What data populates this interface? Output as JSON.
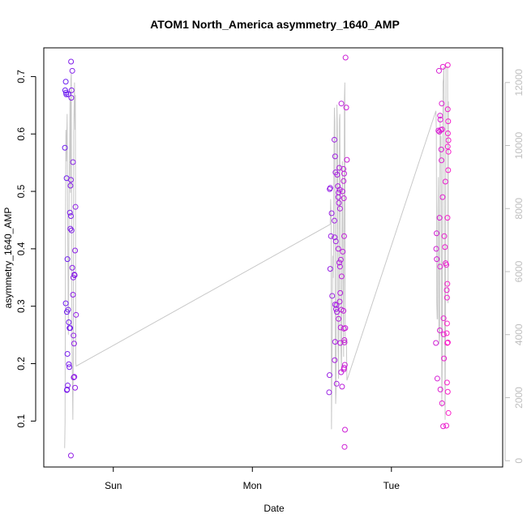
{
  "chart_data": {
    "type": "scatter",
    "title": "ATOM1 North_America asymmetry_1640_AMP",
    "xlabel": "Date",
    "ylabel": "asymmetry_1640_AMP",
    "x_unit": "days",
    "xlim": [
      0.0,
      3.3
    ],
    "ylim": [
      0.02,
      0.75
    ],
    "y2lim": [
      -200,
      13100
    ],
    "x_ticks": [
      {
        "label": "Sun",
        "value": 0.5
      },
      {
        "label": "Mon",
        "value": 1.5
      },
      {
        "label": "Tue",
        "value": 2.5
      }
    ],
    "y_ticks": [
      {
        "label": "0.1",
        "value": 0.1
      },
      {
        "label": "0.2",
        "value": 0.2
      },
      {
        "label": "0.3",
        "value": 0.3
      },
      {
        "label": "0.4",
        "value": 0.4
      },
      {
        "label": "0.5",
        "value": 0.5
      },
      {
        "label": "0.6",
        "value": 0.6
      },
      {
        "label": "0.7",
        "value": 0.7
      }
    ],
    "y2_ticks": [
      {
        "label": "0",
        "value": 0
      },
      {
        "label": "2000",
        "value": 2000
      },
      {
        "label": "4000",
        "value": 4000
      },
      {
        "label": "6000",
        "value": 6000
      },
      {
        "label": "8000",
        "value": 8000
      },
      {
        "label": "10000",
        "value": 10000
      },
      {
        "label": "12000",
        "value": 12000
      }
    ],
    "colors": {
      "start": "#6b1ff0",
      "end": "#ff1fc8",
      "line": "#c8c8c8"
    },
    "grid": false,
    "series": [
      {
        "kind": "points",
        "points": [
          [
            0.154,
            0.676
          ],
          [
            0.158,
            0.691
          ],
          [
            0.162,
            0.669
          ],
          [
            0.16,
            0.672
          ],
          [
            0.176,
            0.669
          ],
          [
            0.152,
            0.576
          ],
          [
            0.164,
            0.523
          ],
          [
            0.17,
            0.382
          ],
          [
            0.158,
            0.305
          ],
          [
            0.166,
            0.29
          ],
          [
            0.175,
            0.294
          ],
          [
            0.18,
            0.272
          ],
          [
            0.185,
            0.262
          ],
          [
            0.19,
            0.262
          ],
          [
            0.17,
            0.217
          ],
          [
            0.18,
            0.199
          ],
          [
            0.184,
            0.194
          ],
          [
            0.172,
            0.162
          ],
          [
            0.166,
            0.154
          ],
          [
            0.168,
            0.155
          ],
          [
            0.188,
            0.463
          ],
          [
            0.195,
            0.457
          ],
          [
            0.191,
            0.435
          ],
          [
            0.2,
            0.432
          ],
          [
            0.196,
            0.726
          ],
          [
            0.205,
            0.71
          ],
          [
            0.2,
            0.676
          ],
          [
            0.198,
            0.663
          ],
          [
            0.195,
            0.52
          ],
          [
            0.192,
            0.51
          ],
          [
            0.21,
            0.551
          ],
          [
            0.205,
            0.367
          ],
          [
            0.212,
            0.35
          ],
          [
            0.22,
            0.355
          ],
          [
            0.222,
            0.354
          ],
          [
            0.225,
            0.397
          ],
          [
            0.228,
            0.473
          ],
          [
            0.21,
            0.32
          ],
          [
            0.214,
            0.249
          ],
          [
            0.218,
            0.235
          ],
          [
            0.215,
            0.176
          ],
          [
            0.22,
            0.177
          ],
          [
            0.225,
            0.158
          ],
          [
            0.232,
            0.285
          ],
          [
            0.195,
            0.04
          ],
          [
            2.056,
            0.504
          ],
          [
            2.06,
            0.506
          ],
          [
            2.06,
            0.365
          ],
          [
            2.055,
            0.18
          ],
          [
            2.052,
            0.15
          ],
          [
            2.07,
            0.462
          ],
          [
            2.065,
            0.422
          ],
          [
            2.074,
            0.318
          ],
          [
            2.09,
            0.59
          ],
          [
            2.095,
            0.561
          ],
          [
            2.098,
            0.533
          ],
          [
            2.09,
            0.449
          ],
          [
            2.092,
            0.42
          ],
          [
            2.1,
            0.413
          ],
          [
            2.095,
            0.303
          ],
          [
            2.105,
            0.302
          ],
          [
            2.102,
            0.295
          ],
          [
            2.108,
            0.29
          ],
          [
            2.095,
            0.238
          ],
          [
            2.092,
            0.206
          ],
          [
            2.106,
            0.165
          ],
          [
            2.11,
            0.529
          ],
          [
            2.115,
            0.509
          ],
          [
            2.12,
            0.498
          ],
          [
            2.118,
            0.49
          ],
          [
            2.125,
            0.541
          ],
          [
            2.128,
            0.503
          ],
          [
            2.122,
            0.48
          ],
          [
            2.13,
            0.47
          ],
          [
            2.118,
            0.4
          ],
          [
            2.125,
            0.376
          ],
          [
            2.13,
            0.369
          ],
          [
            2.136,
            0.381
          ],
          [
            2.132,
            0.323
          ],
          [
            2.128,
            0.308
          ],
          [
            2.12,
            0.278
          ],
          [
            2.14,
            0.294
          ],
          [
            2.135,
            0.263
          ],
          [
            2.132,
            0.236
          ],
          [
            2.138,
            0.185
          ],
          [
            2.145,
            0.16
          ],
          [
            2.14,
            0.653
          ],
          [
            2.148,
            0.5
          ],
          [
            2.15,
            0.395
          ],
          [
            2.142,
            0.352
          ],
          [
            2.155,
            0.539
          ],
          [
            2.16,
            0.531
          ],
          [
            2.156,
            0.518
          ],
          [
            2.158,
            0.488
          ],
          [
            2.16,
            0.422
          ],
          [
            2.155,
            0.292
          ],
          [
            2.158,
            0.261
          ],
          [
            2.162,
            0.241
          ],
          [
            2.163,
            0.237
          ],
          [
            2.16,
            0.193
          ],
          [
            2.165,
            0.198
          ],
          [
            2.168,
            0.262
          ],
          [
            2.17,
            0.733
          ],
          [
            2.175,
            0.646
          ],
          [
            2.18,
            0.555
          ],
          [
            2.166,
            0.085
          ],
          [
            2.163,
            0.055
          ],
          [
            2.158,
            0.19
          ],
          [
            2.82,
            0.236
          ],
          [
            2.822,
            0.4
          ],
          [
            2.825,
            0.427
          ],
          [
            2.826,
            0.382
          ],
          [
            2.83,
            0.174
          ],
          [
            2.838,
            0.606
          ],
          [
            2.842,
            0.71
          ],
          [
            2.845,
            0.604
          ],
          [
            2.846,
            0.454
          ],
          [
            2.85,
            0.632
          ],
          [
            2.852,
            0.625
          ],
          [
            2.855,
            0.607
          ],
          [
            2.858,
            0.573
          ],
          [
            2.848,
            0.258
          ],
          [
            2.852,
            0.155
          ],
          [
            2.85,
            0.369
          ],
          [
            2.862,
            0.653
          ],
          [
            2.865,
            0.608
          ],
          [
            2.86,
            0.554
          ],
          [
            2.868,
            0.49
          ],
          [
            2.87,
            0.717
          ],
          [
            2.864,
            0.131
          ],
          [
            2.872,
            0.091
          ],
          [
            2.875,
            0.279
          ],
          [
            2.876,
            0.251
          ],
          [
            2.878,
            0.209
          ],
          [
            2.88,
            0.422
          ],
          [
            2.885,
            0.403
          ],
          [
            2.888,
            0.517
          ],
          [
            2.89,
            0.375
          ],
          [
            2.895,
            0.372
          ],
          [
            2.898,
            0.328
          ],
          [
            2.9,
            0.315
          ],
          [
            2.895,
            0.092
          ],
          [
            2.905,
            0.72
          ],
          [
            2.905,
            0.643
          ],
          [
            2.908,
            0.622
          ],
          [
            2.906,
            0.601
          ],
          [
            2.91,
            0.589
          ],
          [
            2.905,
            0.578
          ],
          [
            2.91,
            0.569
          ],
          [
            2.908,
            0.537
          ],
          [
            2.903,
            0.454
          ],
          [
            2.902,
            0.339
          ],
          [
            2.9,
            0.167
          ],
          [
            2.905,
            0.151
          ],
          [
            2.91,
            0.114
          ],
          [
            2.906,
            0.237
          ],
          [
            2.902,
            0.236
          ],
          [
            2.9,
            0.27
          ],
          [
            2.898,
            0.253
          ]
        ]
      },
      {
        "kind": "line",
        "axis": "right",
        "points": [
          [
            0.15,
            400
          ],
          [
            0.153,
            1200
          ],
          [
            0.156,
            7000
          ],
          [
            0.159,
            10500
          ],
          [
            0.162,
            9500
          ],
          [
            0.165,
            10200
          ],
          [
            0.168,
            11000
          ],
          [
            0.171,
            8000
          ],
          [
            0.174,
            6200
          ],
          [
            0.177,
            4000
          ],
          [
            0.18,
            6500
          ],
          [
            0.183,
            9000
          ],
          [
            0.186,
            10000
          ],
          [
            0.189,
            11500
          ],
          [
            0.192,
            8500
          ],
          [
            0.195,
            12100
          ],
          [
            0.198,
            12300
          ],
          [
            0.2,
            6000
          ],
          [
            0.203,
            3500
          ],
          [
            0.206,
            2600
          ],
          [
            0.209,
            1300
          ],
          [
            0.212,
            3000
          ],
          [
            0.215,
            10400
          ],
          [
            0.218,
            11200
          ],
          [
            0.221,
            12000
          ],
          [
            0.224,
            10500
          ],
          [
            0.227,
            11600
          ],
          [
            0.23,
            3100
          ],
          [
            0.233,
            3000
          ],
          [
            2.06,
            7500
          ],
          [
            2.063,
            8300
          ],
          [
            2.066,
            7800
          ],
          [
            2.069,
            1000
          ],
          [
            2.072,
            3000
          ],
          [
            2.075,
            4000
          ],
          [
            2.078,
            6500
          ],
          [
            2.081,
            5800
          ],
          [
            2.084,
            7000
          ],
          [
            2.087,
            9800
          ],
          [
            2.09,
            11200
          ],
          [
            2.093,
            10800
          ],
          [
            2.096,
            3500
          ],
          [
            2.099,
            1800
          ],
          [
            2.102,
            2200
          ],
          [
            2.105,
            7000
          ],
          [
            2.108,
            11300
          ],
          [
            2.111,
            10600
          ],
          [
            2.114,
            8200
          ],
          [
            2.117,
            3500
          ],
          [
            2.12,
            2600
          ],
          [
            2.123,
            5500
          ],
          [
            2.126,
            10800
          ],
          [
            2.129,
            11000
          ],
          [
            2.132,
            7500
          ],
          [
            2.135,
            4000
          ],
          [
            2.138,
            3300
          ],
          [
            2.141,
            2800
          ],
          [
            2.144,
            6200
          ],
          [
            2.147,
            9500
          ],
          [
            2.15,
            8000
          ],
          [
            2.153,
            5500
          ],
          [
            2.156,
            3300
          ],
          [
            2.159,
            6500
          ],
          [
            2.162,
            11500
          ],
          [
            2.165,
            12000
          ],
          [
            2.168,
            4000
          ],
          [
            2.171,
            3700
          ],
          [
            2.174,
            3800
          ],
          [
            2.177,
            3600
          ],
          [
            2.18,
            2550
          ],
          [
            2.82,
            11100
          ],
          [
            2.823,
            10500
          ],
          [
            2.826,
            5000
          ],
          [
            2.829,
            4500
          ],
          [
            2.832,
            4500
          ],
          [
            2.835,
            8000
          ],
          [
            2.838,
            9000
          ],
          [
            2.841,
            4200
          ],
          [
            2.844,
            3700
          ],
          [
            2.847,
            4000
          ],
          [
            2.85,
            11000
          ],
          [
            2.853,
            9600
          ],
          [
            2.856,
            10300
          ],
          [
            2.859,
            8400
          ],
          [
            2.862,
            1700
          ],
          [
            2.865,
            2800
          ],
          [
            2.868,
            8700
          ],
          [
            2.871,
            12000
          ],
          [
            2.874,
            12100
          ],
          [
            2.877,
            12500
          ],
          [
            2.88,
            10200
          ],
          [
            2.883,
            4500
          ],
          [
            2.886,
            1300
          ],
          [
            2.889,
            4300
          ],
          [
            2.892,
            12500
          ],
          [
            2.895,
            12500
          ],
          [
            2.898,
            12500
          ],
          [
            2.901,
            12500
          ],
          [
            2.904,
            12500
          ],
          [
            2.907,
            5000
          ],
          [
            2.91,
            11400
          ]
        ]
      }
    ]
  }
}
